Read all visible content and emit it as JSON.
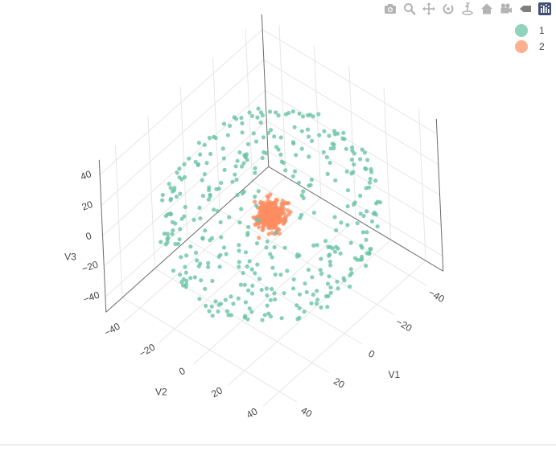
{
  "modebar": {
    "buttons": [
      {
        "name": "download-plot-button",
        "icon": "camera-icon"
      },
      {
        "name": "zoom-button",
        "icon": "zoom-icon"
      },
      {
        "name": "pan-button",
        "icon": "pan-icon"
      },
      {
        "name": "orbit-rotation-button",
        "icon": "orbit-icon"
      },
      {
        "name": "turntable-rotation-button",
        "icon": "turntable-icon"
      },
      {
        "name": "reset-camera-button",
        "icon": "home-icon"
      },
      {
        "name": "save-camera-button",
        "icon": "camera-video-icon"
      },
      {
        "name": "hover-toggle-button",
        "icon": "tag-icon"
      },
      {
        "name": "plotly-logo-button",
        "icon": "plotly-logo-icon"
      }
    ],
    "icon_color": "#b3b3b3",
    "logo_color": "#3f4f75"
  },
  "chart_data": {
    "type": "scatter3d",
    "axes": {
      "x": {
        "label": "V1",
        "ticks": [
          "−40",
          "−20",
          "0",
          "20",
          "40"
        ],
        "range": [
          -50,
          50
        ]
      },
      "y": {
        "label": "V2",
        "ticks": [
          "−40",
          "−20",
          "0",
          "20",
          "40"
        ],
        "range": [
          -50,
          50
        ]
      },
      "z": {
        "label": "V3",
        "ticks": [
          "−40",
          "−20",
          "0",
          "20",
          "40"
        ],
        "range": [
          -50,
          50
        ]
      }
    },
    "grid": true,
    "legend_position": "top-right",
    "series": [
      {
        "name": "1",
        "color": "#66c2a5",
        "shape": "spherical shell",
        "radius": 45,
        "count": 400
      },
      {
        "name": "2",
        "color": "#fc8d62",
        "shape": "dense cluster at origin",
        "std": 3,
        "count": 300
      }
    ]
  }
}
